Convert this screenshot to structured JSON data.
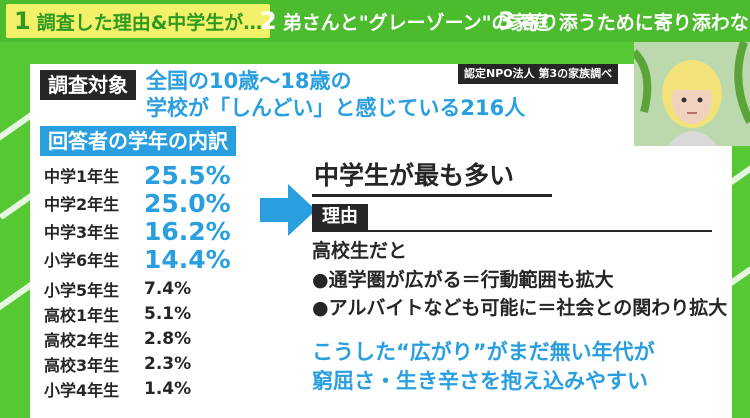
{
  "tabs": [
    {
      "number": "1",
      "label": "調査した理由&中学生が…",
      "active": true
    },
    {
      "number": "2",
      "label": "弟さんと\"グレーゾーン\"の家庭",
      "active": false
    },
    {
      "number": "3",
      "label": "寄り添うために寄り添わない",
      "active": false
    }
  ],
  "source": "認定NPO法人 第3の家族調べ",
  "survey": {
    "label": "調査対象",
    "subject_line1": "全国の10歳〜18歳の",
    "subject_line2": "学校が「しんどい」と感じている216人"
  },
  "breakdown": {
    "label": "回答者の学年の内訳",
    "rows": [
      {
        "grade": "中学1年生",
        "percent": "25.5%",
        "emphasis": true
      },
      {
        "grade": "中学2年生",
        "percent": "25.0%",
        "emphasis": true
      },
      {
        "grade": "中学3年生",
        "percent": "16.2%",
        "emphasis": true
      },
      {
        "grade": "小学6年生",
        "percent": "14.4%",
        "emphasis": true
      },
      {
        "grade": "小学5年生",
        "percent": "7.4%",
        "emphasis": false
      },
      {
        "grade": "高校1年生",
        "percent": "5.1%",
        "emphasis": false
      },
      {
        "grade": "高校2年生",
        "percent": "2.8%",
        "emphasis": false
      },
      {
        "grade": "高校3年生",
        "percent": "2.3%",
        "emphasis": false
      },
      {
        "grade": "小学4年生",
        "percent": "1.4%",
        "emphasis": false
      }
    ]
  },
  "finding": {
    "headline": "中学生が最も多い",
    "reason_label": "理由",
    "intro": "高校生だと",
    "bullet1": "●通学圏が広がる＝行動範囲も拡大",
    "bullet2": "●アルバイトなども可能に＝社会との関わり拡大",
    "conclusion1": "こうした“広がり”がまだ無い年代が",
    "conclusion2": "窮屈さ・生き辛さを抱え込みやすい"
  },
  "colors": {
    "background_green": "#55c834",
    "accent_blue": "#2a9fe0",
    "label_black": "#262626",
    "active_tab_yellow": "#f3f06a"
  }
}
